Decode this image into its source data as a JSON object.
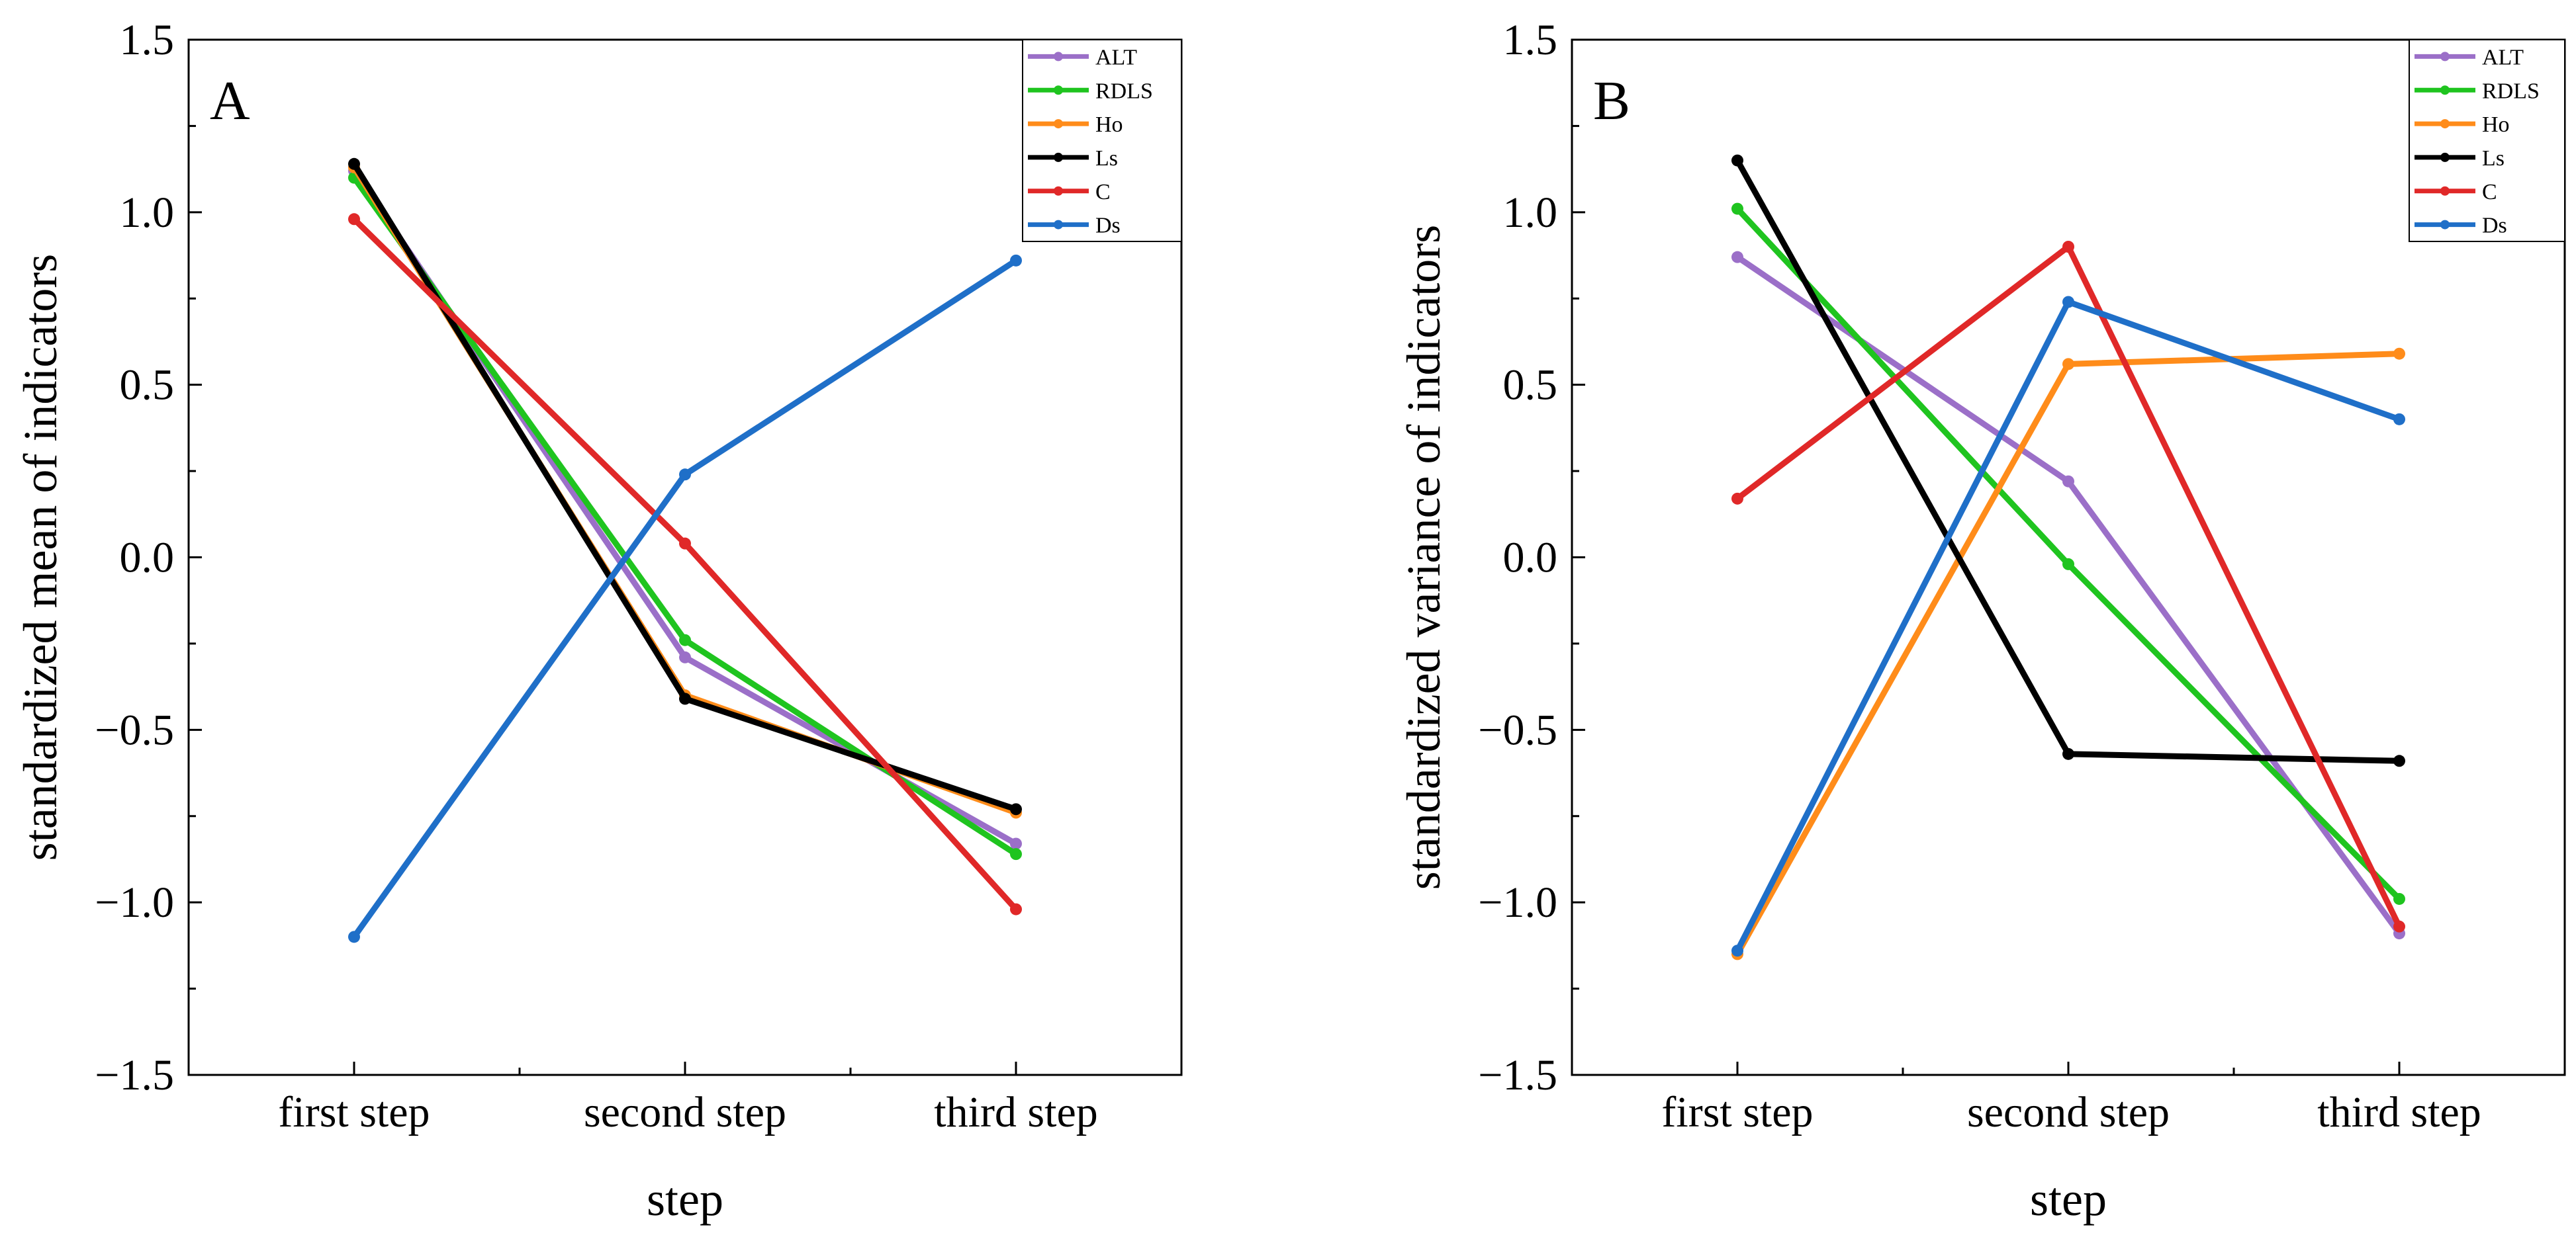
{
  "colors": {
    "ALT": "#9b6fc8",
    "RDLS": "#1fc41f",
    "Ho": "#ff8c1a",
    "Ls": "#000000",
    "C": "#e02828",
    "Ds": "#1f6fc8"
  },
  "chart_data": [
    {
      "type": "line",
      "panel_label": "A",
      "title": "",
      "xlabel": "step",
      "ylabel": "standardized mean of indicators",
      "categories": [
        "first step",
        "second step",
        "third step"
      ],
      "ylim": [
        -1.5,
        1.5
      ],
      "yticks": [
        -1.5,
        -1.0,
        -0.5,
        0.0,
        0.5,
        1.0,
        1.5
      ],
      "ytick_labels": [
        "−1.5",
        "−1.0",
        "−0.5",
        "0.0",
        "0.5",
        "1.0",
        "1.5"
      ],
      "legend_position": "top-right",
      "series": [
        {
          "name": "ALT",
          "values": [
            1.12,
            -0.29,
            -0.83
          ]
        },
        {
          "name": "RDLS",
          "values": [
            1.1,
            -0.24,
            -0.86
          ]
        },
        {
          "name": "Ho",
          "values": [
            1.13,
            -0.4,
            -0.74
          ]
        },
        {
          "name": "Ls",
          "values": [
            1.14,
            -0.41,
            -0.73
          ]
        },
        {
          "name": "C",
          "values": [
            0.98,
            0.04,
            -1.02
          ]
        },
        {
          "name": "Ds",
          "values": [
            -1.1,
            0.24,
            0.86
          ]
        }
      ]
    },
    {
      "type": "line",
      "panel_label": "B",
      "title": "",
      "xlabel": "step",
      "ylabel": "standardized variance of indicators",
      "categories": [
        "first step",
        "second step",
        "third step"
      ],
      "ylim": [
        -1.5,
        1.5
      ],
      "yticks": [
        -1.5,
        -1.0,
        -0.5,
        0.0,
        0.5,
        1.0,
        1.5
      ],
      "ytick_labels": [
        "−1.5",
        "−1.0",
        "−0.5",
        "0.0",
        "0.5",
        "1.0",
        "1.5"
      ],
      "legend_position": "top-right",
      "series": [
        {
          "name": "ALT",
          "values": [
            0.87,
            0.22,
            -1.09
          ]
        },
        {
          "name": "RDLS",
          "values": [
            1.01,
            -0.02,
            -0.99
          ]
        },
        {
          "name": "Ho",
          "values": [
            -1.15,
            0.56,
            0.59
          ]
        },
        {
          "name": "Ls",
          "values": [
            1.15,
            -0.57,
            -0.59
          ]
        },
        {
          "name": "C",
          "values": [
            0.17,
            0.9,
            -1.07
          ]
        },
        {
          "name": "Ds",
          "values": [
            -1.14,
            0.74,
            0.4
          ]
        }
      ]
    }
  ]
}
